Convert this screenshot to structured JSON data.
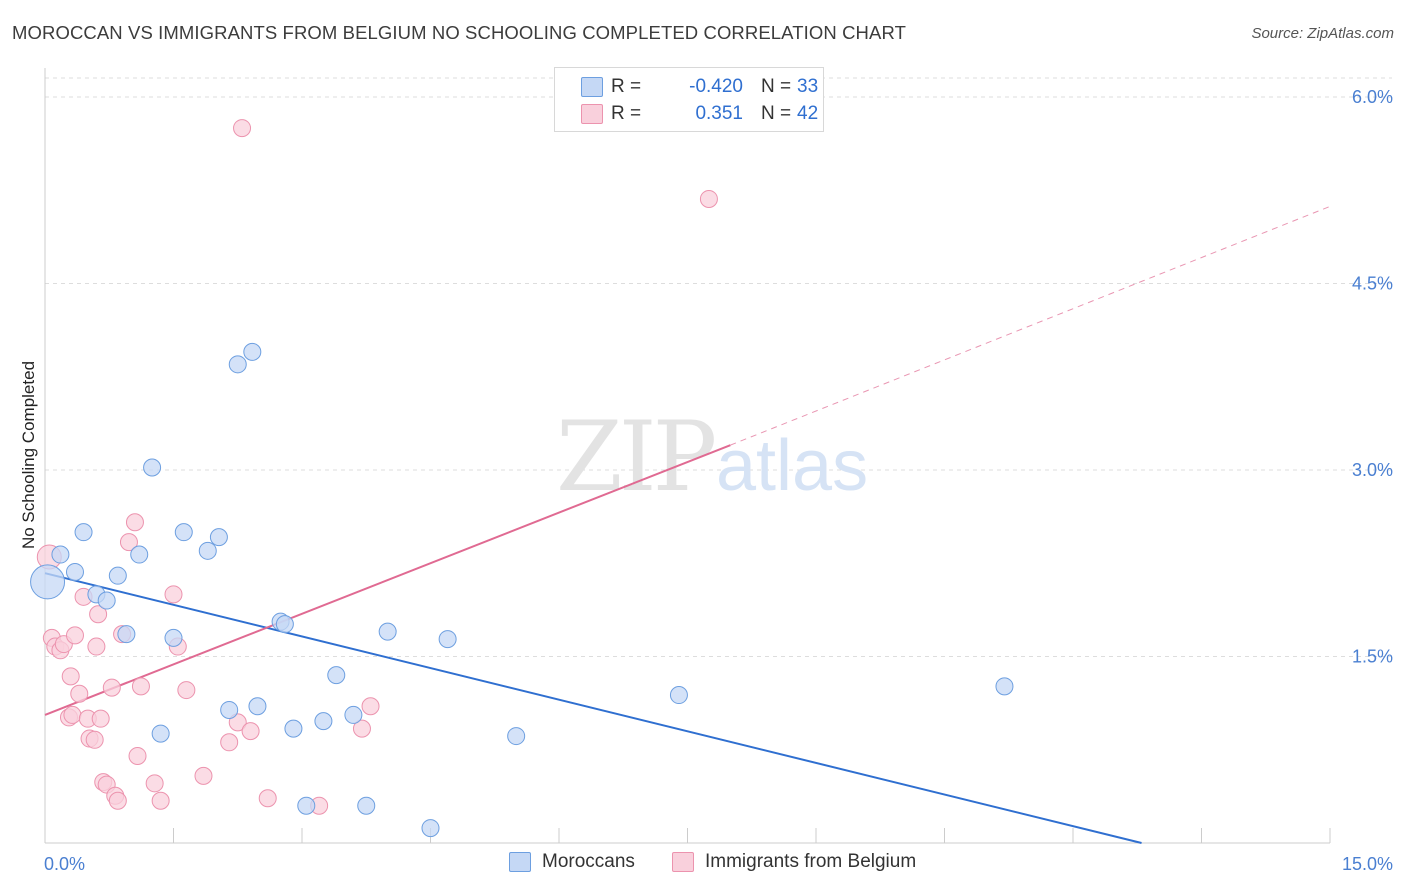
{
  "title": "MOROCCAN VS IMMIGRANTS FROM BELGIUM NO SCHOOLING COMPLETED CORRELATION CHART",
  "source": "Source: ZipAtlas.com",
  "watermark": {
    "zip": "ZIP",
    "atlas": "atlas"
  },
  "colors": {
    "moroccans_fill": "#c5d8f5",
    "moroccans_stroke": "#6d9fe0",
    "moroccans_line": "#2f6fd0",
    "belgium_fill": "#f9d0dc",
    "belgium_stroke": "#ec93ae",
    "belgium_line": "#e06a92",
    "tick_text": "#4a7fd1",
    "grid": "#dddddd"
  },
  "legend": {
    "rows": [
      {
        "r_label": "R =",
        "r_value": "-0.420",
        "n_label": "N =",
        "n_value": "33"
      },
      {
        "r_label": "R =",
        "r_value": "0.351",
        "n_label": "N =",
        "n_value": "42"
      }
    ]
  },
  "bottom_legend": {
    "moroccans": "Moroccans",
    "belgium": "Immigrants from Belgium"
  },
  "chart_data": {
    "type": "scatter",
    "title": "MOROCCAN VS IMMIGRANTS FROM BELGIUM NO SCHOOLING COMPLETED CORRELATION CHART",
    "xlabel": "",
    "ylabel": "No Schooling Completed",
    "xlim": [
      0,
      15
    ],
    "ylim": [
      0,
      6.2
    ],
    "x_tick_labels": [
      "0.0%",
      "15.0%"
    ],
    "y_ticks": [
      1.5,
      3.0,
      4.5,
      6.0
    ],
    "y_tick_labels": [
      "1.5%",
      "3.0%",
      "4.5%",
      "6.0%"
    ],
    "grid": true,
    "series": [
      {
        "name": "Moroccans",
        "r": -0.42,
        "n": 33,
        "points": [
          [
            0.03,
            2.1
          ],
          [
            0.18,
            2.32
          ],
          [
            0.35,
            2.18
          ],
          [
            0.45,
            2.5
          ],
          [
            0.6,
            2.0
          ],
          [
            0.72,
            1.95
          ],
          [
            0.85,
            2.15
          ],
          [
            0.95,
            1.68
          ],
          [
            1.1,
            2.32
          ],
          [
            1.25,
            3.02
          ],
          [
            1.35,
            0.88
          ],
          [
            1.5,
            1.65
          ],
          [
            1.62,
            2.5
          ],
          [
            1.9,
            2.35
          ],
          [
            2.03,
            2.46
          ],
          [
            2.15,
            1.07
          ],
          [
            2.25,
            3.85
          ],
          [
            2.42,
            3.95
          ],
          [
            2.48,
            1.1
          ],
          [
            2.75,
            1.78
          ],
          [
            2.8,
            1.76
          ],
          [
            2.9,
            0.92
          ],
          [
            3.05,
            0.3
          ],
          [
            3.25,
            0.98
          ],
          [
            3.4,
            1.35
          ],
          [
            3.6,
            1.03
          ],
          [
            3.75,
            0.3
          ],
          [
            4.0,
            1.7
          ],
          [
            4.5,
            0.12
          ],
          [
            4.7,
            1.64
          ],
          [
            5.5,
            0.86
          ],
          [
            7.4,
            1.19
          ],
          [
            11.2,
            1.26
          ]
        ],
        "sizes": [
          3,
          1,
          1,
          1,
          1,
          1,
          1,
          1,
          1,
          1,
          1,
          1,
          1,
          1,
          1,
          1,
          1,
          1,
          1,
          1,
          1,
          1,
          1,
          1,
          1,
          1,
          1,
          1,
          1,
          1,
          1,
          1,
          1
        ],
        "trend": {
          "x0": 0.0,
          "y0": 2.17,
          "x1": 12.8,
          "y1": 0.0,
          "style": "solid"
        }
      },
      {
        "name": "Immigrants from Belgium",
        "r": 0.351,
        "n": 42,
        "points": [
          [
            0.05,
            2.3
          ],
          [
            0.08,
            1.65
          ],
          [
            0.12,
            1.58
          ],
          [
            0.18,
            1.55
          ],
          [
            0.22,
            1.6
          ],
          [
            0.28,
            1.01
          ],
          [
            0.3,
            1.34
          ],
          [
            0.32,
            1.03
          ],
          [
            0.35,
            1.67
          ],
          [
            0.4,
            1.2
          ],
          [
            0.45,
            1.98
          ],
          [
            0.5,
            1.0
          ],
          [
            0.52,
            0.84
          ],
          [
            0.58,
            0.83
          ],
          [
            0.6,
            1.58
          ],
          [
            0.62,
            1.84
          ],
          [
            0.65,
            1.0
          ],
          [
            0.68,
            0.49
          ],
          [
            0.72,
            0.47
          ],
          [
            0.78,
            1.25
          ],
          [
            0.82,
            0.38
          ],
          [
            0.85,
            0.34
          ],
          [
            0.9,
            1.68
          ],
          [
            0.98,
            2.42
          ],
          [
            1.05,
            2.58
          ],
          [
            1.08,
            0.7
          ],
          [
            1.12,
            1.26
          ],
          [
            1.28,
            0.48
          ],
          [
            1.35,
            0.34
          ],
          [
            1.5,
            2.0
          ],
          [
            1.55,
            1.58
          ],
          [
            1.65,
            1.23
          ],
          [
            1.85,
            0.54
          ],
          [
            2.15,
            0.81
          ],
          [
            2.25,
            0.97
          ],
          [
            2.3,
            5.75
          ],
          [
            2.4,
            0.9
          ],
          [
            2.6,
            0.36
          ],
          [
            3.2,
            0.3
          ],
          [
            3.7,
            0.92
          ],
          [
            3.8,
            1.1
          ],
          [
            7.75,
            5.18
          ]
        ],
        "sizes": [
          2,
          1,
          1,
          1,
          1,
          1,
          1,
          1,
          1,
          1,
          1,
          1,
          1,
          1,
          1,
          1,
          1,
          1,
          1,
          1,
          1,
          1,
          1,
          1,
          1,
          1,
          1,
          1,
          1,
          1,
          1,
          1,
          1,
          1,
          1,
          1,
          1,
          1,
          1,
          1,
          1,
          1
        ],
        "trend": {
          "x0": 0.0,
          "y0": 1.03,
          "x1": 8.0,
          "y1": 3.2,
          "style": "solid"
        },
        "trend_extension": {
          "x0": 8.0,
          "y0": 3.2,
          "x1": 15.0,
          "y1": 5.12,
          "style": "dashed"
        }
      }
    ]
  }
}
